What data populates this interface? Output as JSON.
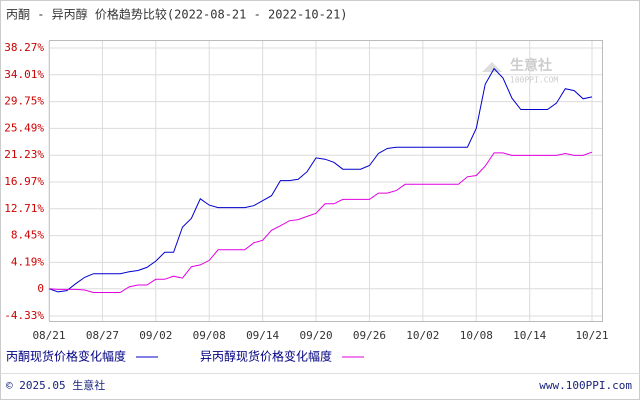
{
  "chart_data": {
    "type": "line",
    "title": "丙酮 - 异丙醇 价格趋势比较(2022-08-21 - 2022-10-21)",
    "categories": [
      "08/21",
      null,
      null,
      null,
      null,
      null,
      "08/27",
      null,
      null,
      null,
      null,
      null,
      "09/02",
      null,
      null,
      null,
      null,
      null,
      "09/08",
      null,
      null,
      null,
      null,
      null,
      "09/14",
      null,
      null,
      null,
      null,
      null,
      "09/20",
      null,
      null,
      null,
      null,
      null,
      "09/26",
      null,
      null,
      null,
      null,
      null,
      "10/02",
      null,
      null,
      null,
      null,
      null,
      "10/08",
      null,
      null,
      null,
      null,
      null,
      "10/14",
      null,
      null,
      null,
      null,
      null,
      null,
      "10/21"
    ],
    "series": [
      {
        "name": "丙酮现货价格变化幅度",
        "color": "#0000cc",
        "values": [
          0,
          -0.5,
          -0.3,
          0.8,
          1.8,
          2.4,
          2.4,
          2.4,
          2.4,
          2.7,
          2.9,
          3.4,
          4.4,
          5.8,
          5.8,
          9.8,
          11.2,
          14.3,
          13.3,
          12.9,
          12.9,
          12.9,
          12.9,
          13.2,
          14.0,
          14.8,
          17.2,
          17.2,
          17.4,
          18.6,
          20.8,
          20.6,
          20.1,
          19.0,
          19.0,
          19.0,
          19.6,
          21.5,
          22.3,
          22.5,
          22.5,
          22.5,
          22.5,
          22.5,
          22.5,
          22.5,
          22.5,
          22.5,
          25.5,
          32.5,
          35.0,
          33.5,
          30.3,
          28.5,
          28.5,
          28.5,
          28.5,
          29.5,
          31.8,
          31.5,
          30.2,
          30.5
        ]
      },
      {
        "name": "异丙醇现货价格变化幅度",
        "color": "#e000e0",
        "values": [
          0,
          -0.1,
          -0.1,
          -0.1,
          -0.2,
          -0.6,
          -0.6,
          -0.6,
          -0.6,
          0.3,
          0.6,
          0.6,
          1.5,
          1.5,
          2.0,
          1.7,
          3.5,
          3.8,
          4.5,
          6.2,
          6.2,
          6.2,
          6.2,
          7.3,
          7.7,
          9.3,
          10.0,
          10.8,
          11.0,
          11.5,
          12.0,
          13.5,
          13.5,
          14.2,
          14.2,
          14.2,
          14.2,
          15.2,
          15.2,
          15.6,
          16.6,
          16.6,
          16.6,
          16.6,
          16.6,
          16.6,
          16.6,
          17.8,
          18.0,
          19.5,
          21.6,
          21.6,
          21.2,
          21.2,
          21.2,
          21.2,
          21.2,
          21.2,
          21.5,
          21.2,
          21.2,
          21.7
        ]
      }
    ],
    "ylim": [
      -4.33,
      38.27
    ],
    "yticks": [
      {
        "value": -4.33,
        "label": "-4.33%"
      },
      0,
      {
        "value": 4.19,
        "label": "4.19%"
      },
      {
        "value": 8.45,
        "label": "8.45%"
      },
      {
        "value": 12.71,
        "label": "12.71%"
      },
      {
        "value": 16.97,
        "label": "16.97%"
      },
      {
        "value": 21.23,
        "label": "21.23%"
      },
      {
        "value": 25.49,
        "label": "25.49%"
      },
      {
        "value": 29.75,
        "label": "29.75%"
      },
      {
        "value": 34.01,
        "label": "34.01%"
      },
      {
        "value": 38.27,
        "label": "38.27%"
      }
    ],
    "grid": true,
    "watermark": "生意社",
    "watermark_url": "100PPI.COM",
    "footer_left": "© 2025.05 生意社",
    "footer_right": "www.100PPI.com"
  }
}
